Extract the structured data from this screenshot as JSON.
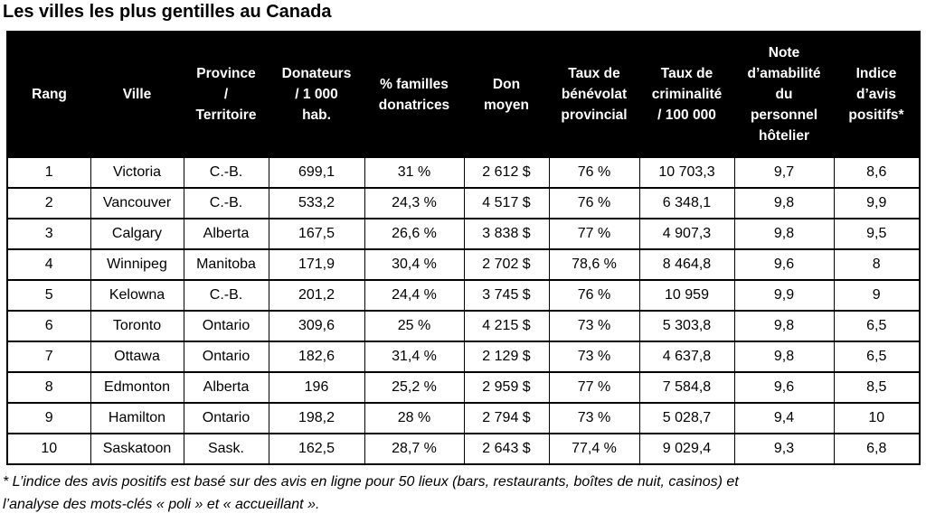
{
  "title": "Les villes les plus gentilles au Canada",
  "colors": {
    "header_bg": "#000000",
    "header_text": "#ffffff",
    "body_bg": "#ffffff",
    "body_text": "#000000",
    "border": "#000000"
  },
  "chart_data": {
    "type": "table",
    "title": "Les villes les plus gentilles au Canada",
    "columns": [
      "Rang",
      "Ville",
      "Province\n/\nTerritoire",
      "Donateurs\n/ 1 000\nhab.",
      "% familles\ndonatrices",
      "Don\nmoyen",
      "Taux de\nbénévolat\nprovincial",
      "Taux de\ncriminalité\n/ 100 000",
      "Note\nd’amabilité\ndu\npersonnel\nhôtelier",
      "Indice\nd’avis\npositifs*"
    ],
    "rows": [
      [
        "1",
        "Victoria",
        "C.-B.",
        "699,1",
        "31 %",
        "2 612 $",
        "76 %",
        "10 703,3",
        "9,7",
        "8,6"
      ],
      [
        "2",
        "Vancouver",
        "C.-B.",
        "533,2",
        "24,3 %",
        "4 517 $",
        "76 %",
        "6 348,1",
        "9,8",
        "9,9"
      ],
      [
        "3",
        "Calgary",
        "Alberta",
        "167,5",
        "26,6 %",
        "3 838 $",
        "77 %",
        "4 907,3",
        "9,8",
        "9,5"
      ],
      [
        "4",
        "Winnipeg",
        "Manitoba",
        "171,9",
        "30,4 %",
        "2 702 $",
        "78,6 %",
        "8 464,8",
        "9,6",
        "8"
      ],
      [
        "5",
        "Kelowna",
        "C.-B.",
        "201,2",
        "24,4 %",
        "3 745 $",
        "76 %",
        "10 959",
        "9,9",
        "9"
      ],
      [
        "6",
        "Toronto",
        "Ontario",
        "309,6",
        "25 %",
        "4 215 $",
        "73 %",
        "5 303,8",
        "9,8",
        "6,5"
      ],
      [
        "7",
        "Ottawa",
        "Ontario",
        "182,6",
        "31,4 %",
        "2 129 $",
        "73 %",
        "4 637,8",
        "9,8",
        "6,5"
      ],
      [
        "8",
        "Edmonton",
        "Alberta",
        "196",
        "25,2 %",
        "2 959 $",
        "77 %",
        "7 584,8",
        "9,6",
        "8,5"
      ],
      [
        "9",
        "Hamilton",
        "Ontario",
        "198,2",
        "28 %",
        "2 794 $",
        "73 %",
        "5 028,7",
        "9,4",
        "10"
      ],
      [
        "10",
        "Saskatoon",
        "Sask.",
        "162,5",
        "28,7 %",
        "2 643 $",
        "77,4 %",
        "9 029,4",
        "9,3",
        "6,8"
      ]
    ],
    "footnote": "* L’indice des avis positifs est basé sur des avis en ligne pour 50 lieux (bars, restaurants, boîtes de nuit, casinos) et\nl’analyse des mots-clés « poli » et « accueillant »."
  }
}
